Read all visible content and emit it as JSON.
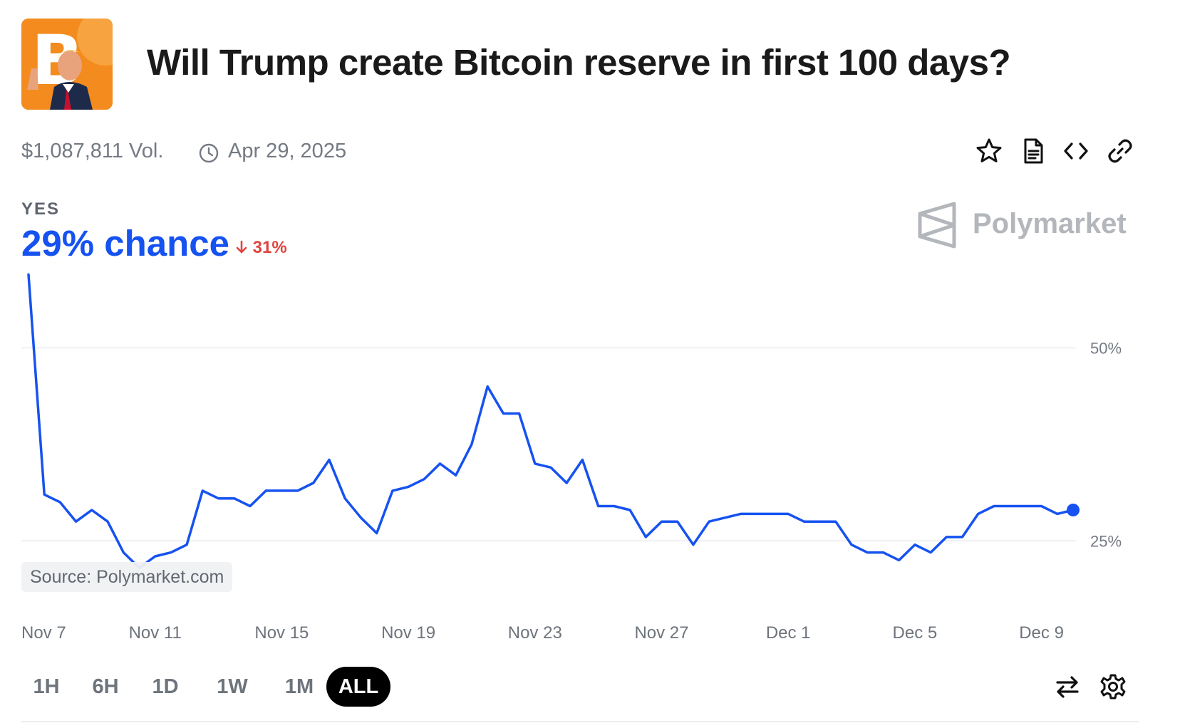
{
  "header": {
    "title": "Will Trump create Bitcoin reserve in first 100 days?",
    "volume": "$1,087,811 Vol.",
    "end_date": "Apr 29, 2025"
  },
  "actions": {
    "icons": [
      "star-icon",
      "document-icon",
      "code-icon",
      "link-icon"
    ]
  },
  "outcome": {
    "label": "YES",
    "chance": "29% chance",
    "delta": "31%",
    "delta_color": "#e0443e",
    "accent": "#1652f0"
  },
  "brand": {
    "name": "Polymarket"
  },
  "source": "Source: Polymarket.com",
  "ranges": {
    "items": [
      "1H",
      "6H",
      "1D",
      "1W",
      "1M",
      "ALL"
    ],
    "active": "ALL"
  },
  "tools": {
    "icons": [
      "swap-icon",
      "settings-icon"
    ]
  },
  "chart_data": {
    "type": "line",
    "x_start": "Nov 7",
    "x_end": "Dec 10",
    "xticks": [
      "Nov 7",
      "Nov 11",
      "Nov 15",
      "Nov 19",
      "Nov 23",
      "Nov 27",
      "Dec 1",
      "Dec 5",
      "Dec 9"
    ],
    "xtick_days": [
      0,
      4,
      8,
      12,
      16,
      20,
      24,
      28,
      32
    ],
    "yticks": [
      50,
      25
    ],
    "ytick_labels": [
      "50%",
      "25%"
    ],
    "ylim": [
      17,
      60
    ],
    "grid": true,
    "line_color": "#1652f0",
    "series": [
      {
        "x": [
          0,
          0.5,
          1.0,
          1.5,
          2.0,
          2.5,
          3.0,
          3.5,
          4.0,
          4.5,
          5.0,
          5.5,
          6.0,
          6.5,
          7.0,
          7.5,
          8.0,
          8.5,
          9.0,
          9.5,
          10.0,
          10.5,
          11.0,
          11.5,
          12.0,
          12.5,
          13.0,
          13.5,
          14.0,
          14.5,
          15.0,
          15.5,
          16.0,
          16.5,
          17.0,
          17.5,
          18.0,
          18.5,
          19.0,
          19.5,
          20.0,
          20.5,
          21.0,
          21.5,
          22.0,
          22.5,
          23.0,
          23.5,
          24.0,
          24.5,
          25.0,
          25.5,
          26.0,
          26.5,
          27.0,
          27.5,
          28.0,
          28.5,
          29.0,
          29.5,
          30.0,
          30.5,
          31.0,
          31.5,
          32.0,
          32.5,
          33.0
        ],
        "y": [
          59.5,
          31.0,
          30.0,
          27.5,
          29.0,
          27.5,
          23.5,
          21.5,
          23.0,
          23.5,
          24.5,
          31.5,
          30.5,
          30.5,
          29.5,
          31.5,
          31.5,
          31.5,
          32.5,
          35.5,
          30.5,
          28.0,
          26.0,
          31.5,
          32.0,
          33.0,
          35.0,
          33.5,
          37.5,
          45.0,
          41.5,
          41.5,
          35.0,
          34.5,
          32.5,
          35.5,
          29.5,
          29.5,
          29.0,
          25.5,
          27.5,
          27.5,
          24.5,
          27.5,
          28.0,
          28.5,
          28.5,
          28.5,
          28.5,
          27.5,
          27.5,
          27.5,
          24.5,
          23.5,
          23.5,
          22.5,
          24.5,
          23.5,
          25.5,
          25.5,
          28.5,
          29.5,
          29.5,
          29.5,
          29.5,
          28.5,
          29.0
        ]
      }
    ]
  }
}
